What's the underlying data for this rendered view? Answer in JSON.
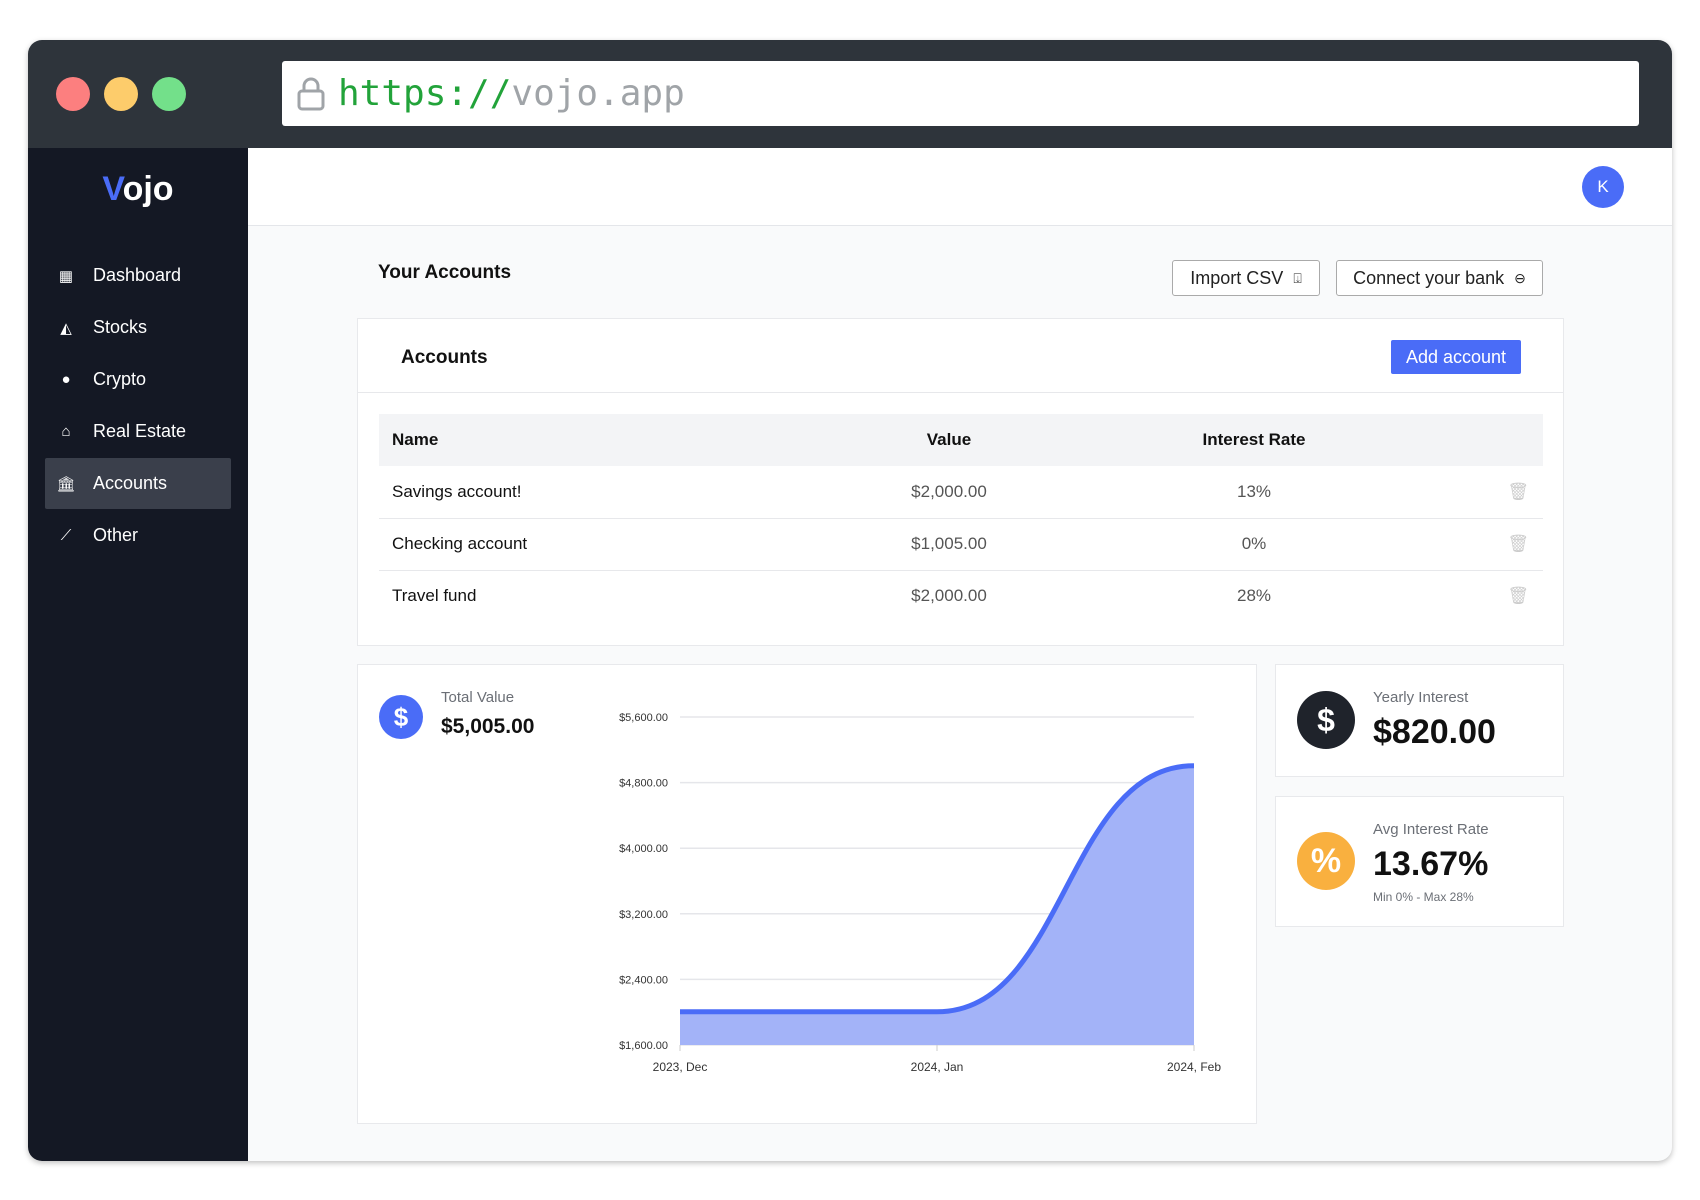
{
  "browser": {
    "url_protocol": "https://",
    "url_host": "vojo.app",
    "lock_icon": "lock-icon",
    "dots": {
      "red": "#fc7f7f",
      "yellow": "#fdcc6b",
      "green": "#73e08a"
    }
  },
  "sidebar": {
    "logo_v": "V",
    "logo_rest": "ojo",
    "items": [
      {
        "label": "Dashboard",
        "icon": "dashboard-icon"
      },
      {
        "label": "Stocks",
        "icon": "area-chart-icon"
      },
      {
        "label": "Crypto",
        "icon": "bitcoin-icon"
      },
      {
        "label": "Real Estate",
        "icon": "home-icon"
      },
      {
        "label": "Accounts",
        "icon": "bank-icon",
        "active": true
      },
      {
        "label": "Other",
        "icon": "line-chart-icon"
      }
    ]
  },
  "header": {
    "avatar_initial": "K"
  },
  "page": {
    "title": "Your Accounts",
    "import_csv": "Import CSV",
    "connect_bank": "Connect your bank"
  },
  "accounts_card": {
    "title": "Accounts",
    "add_button": "Add account",
    "columns": [
      "Name",
      "Value",
      "Interest Rate"
    ],
    "rows": [
      {
        "name": "Savings account!",
        "value": "$2,000.00",
        "rate": "13%"
      },
      {
        "name": "Checking account",
        "value": "$1,005.00",
        "rate": "0%"
      },
      {
        "name": "Travel fund",
        "value": "$2,000.00",
        "rate": "28%"
      }
    ]
  },
  "total": {
    "label": "Total Value",
    "value": "$5,005.00"
  },
  "yearly": {
    "label": "Yearly Interest",
    "value": "$820.00"
  },
  "avg": {
    "label": "Avg Interest Rate",
    "value": "13.67%",
    "range": "Min 0% - Max 28%"
  },
  "colors": {
    "accent": "#4a6cf7",
    "fill": "#a3b3f8",
    "yellow": "#f9b03f",
    "dark": "#1f232b"
  },
  "chart_data": {
    "type": "area",
    "x": [
      "2023, Dec",
      "2024, Jan",
      "2024, Feb"
    ],
    "values": [
      2005,
      2005,
      5005
    ],
    "yticks": [
      "$1,600.00",
      "$2,400.00",
      "$3,200.00",
      "$4,000.00",
      "$4,800.00",
      "$5,600.00"
    ],
    "ytick_values": [
      1600,
      2400,
      3200,
      4000,
      4800,
      5600
    ],
    "ylim": [
      1600,
      5600
    ],
    "grid": true
  }
}
